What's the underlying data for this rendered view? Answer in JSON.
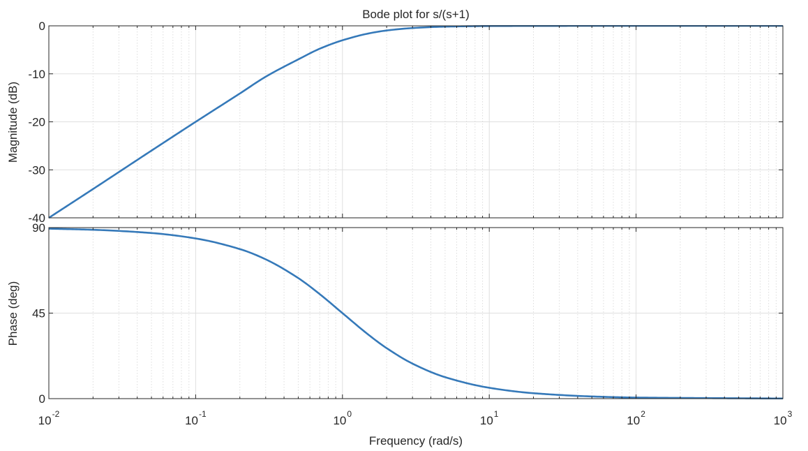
{
  "chart_data": {
    "type": "line",
    "title": "Bode plot for s/(s+1)",
    "xlabel": "Frequency  (rad/s)",
    "xscale": "log",
    "xlim": [
      0.01,
      1000
    ],
    "x_ticks": [
      {
        "value": 0.01,
        "base": "10",
        "exp": "-2"
      },
      {
        "value": 0.1,
        "base": "10",
        "exp": "-1"
      },
      {
        "value": 1,
        "base": "10",
        "exp": "0"
      },
      {
        "value": 10,
        "base": "10",
        "exp": "1"
      },
      {
        "value": 100,
        "base": "10",
        "exp": "2"
      },
      {
        "value": 1000,
        "base": "10",
        "exp": "3"
      }
    ],
    "grid": true,
    "line_color": "#3579b9",
    "panels": [
      {
        "ylabel": "Magnitude (dB)",
        "ylim": [
          -40,
          0
        ],
        "y_ticks": [
          {
            "value": 0,
            "label": "0"
          },
          {
            "value": -10,
            "label": "-10"
          },
          {
            "value": -20,
            "label": "-20"
          },
          {
            "value": -30,
            "label": "-30"
          },
          {
            "value": -40,
            "label": "-40"
          }
        ],
        "series": [
          {
            "x": [
              0.01,
              0.02,
              0.05,
              0.1,
              0.2,
              0.3,
              0.5,
              0.7,
              1,
              1.5,
              2,
              3,
              5,
              10,
              20,
              50,
              100,
              1000
            ],
            "y": [
              -40.0,
              -34.0,
              -26.0,
              -20.0,
              -14.1,
              -10.6,
              -6.99,
              -4.77,
              -3.01,
              -1.6,
              -0.97,
              -0.46,
              -0.17,
              -0.04,
              -0.01,
              0.0,
              0.0,
              0.0
            ]
          }
        ]
      },
      {
        "ylabel": "Phase (deg)",
        "ylim": [
          0,
          90
        ],
        "y_ticks": [
          {
            "value": 90,
            "label": "90"
          },
          {
            "value": 45,
            "label": "45"
          },
          {
            "value": 0,
            "label": "0"
          }
        ],
        "series": [
          {
            "x": [
              0.01,
              0.02,
              0.05,
              0.1,
              0.2,
              0.3,
              0.5,
              0.7,
              1,
              1.5,
              2,
              3,
              5,
              10,
              20,
              50,
              100,
              1000
            ],
            "y": [
              89.43,
              88.85,
              87.14,
              84.29,
              78.69,
              73.3,
              63.43,
              55.0,
              45.0,
              33.69,
              26.57,
              18.43,
              11.31,
              5.71,
              2.86,
              1.15,
              0.57,
              0.06
            ]
          }
        ]
      }
    ]
  }
}
